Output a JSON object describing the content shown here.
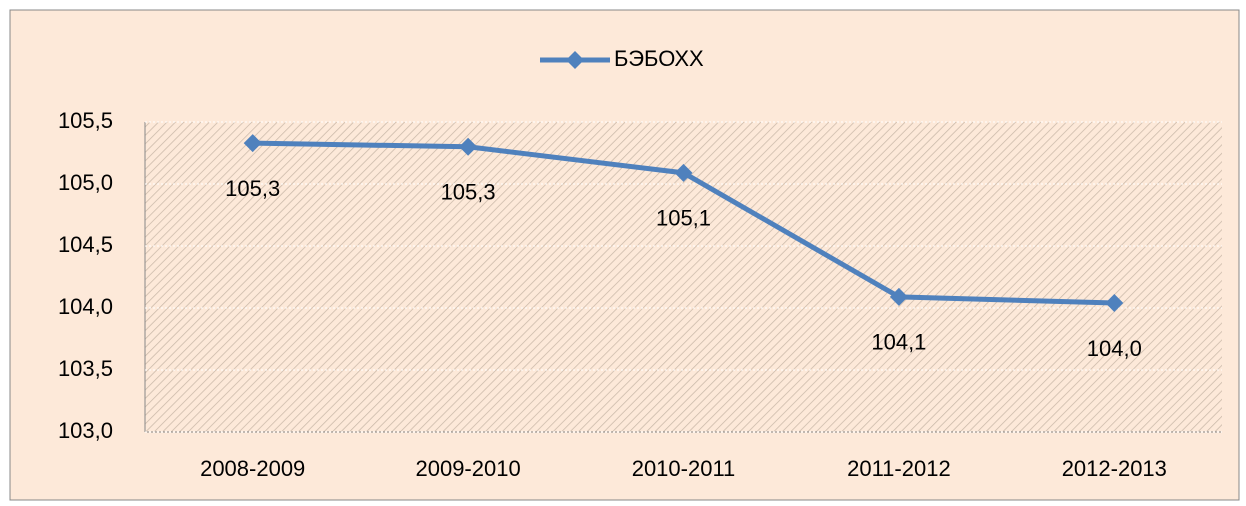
{
  "chart_data": {
    "type": "line",
    "categories": [
      "2008-2009",
      "2009-2010",
      "2010-2011",
      "2011-2012",
      "2012-2013"
    ],
    "series": [
      {
        "name": "БЭБОХХ",
        "color": "#4f81bd",
        "values": [
          105.33,
          105.3,
          105.09,
          104.09,
          104.04
        ],
        "value_labels": [
          "105,3",
          "105,3",
          "105,1",
          "104,1",
          "104,0"
        ]
      }
    ],
    "ylim": [
      103.0,
      105.5
    ],
    "yticks": [
      {
        "value": 103.0,
        "label": "103,0"
      },
      {
        "value": 103.5,
        "label": "103,5"
      },
      {
        "value": 104.0,
        "label": "104,0"
      },
      {
        "value": 104.5,
        "label": "104,5"
      },
      {
        "value": 105.0,
        "label": "105,0"
      },
      {
        "value": 105.5,
        "label": "105,5"
      }
    ],
    "grid": true,
    "legend": "top"
  }
}
